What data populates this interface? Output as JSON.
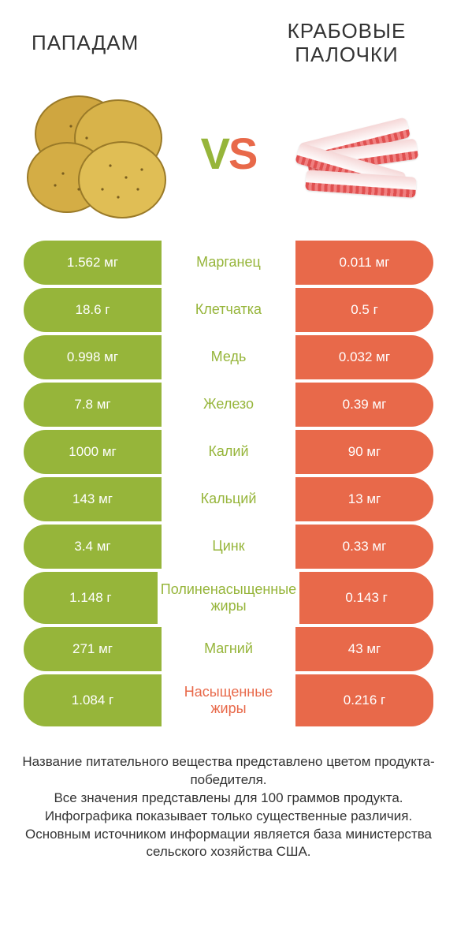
{
  "colors": {
    "left": "#96b53a",
    "right": "#e8694a",
    "background": "#ffffff",
    "text": "#333333",
    "cell_text": "#ffffff"
  },
  "fonts": {
    "title_size": 26,
    "vs_size": 56,
    "cell_size": 17,
    "mid_size": 18,
    "foot_size": 17
  },
  "header": {
    "left_title": "ПАПАДАМ",
    "right_title": "КРАБОВЫЕ ПАЛОЧКИ"
  },
  "vs": {
    "v": "V",
    "s": "S"
  },
  "rows": [
    {
      "left": "1.562 мг",
      "mid": "Марганец",
      "right": "0.011 мг",
      "winner": "left"
    },
    {
      "left": "18.6 г",
      "mid": "Клетчатка",
      "right": "0.5 г",
      "winner": "left"
    },
    {
      "left": "0.998 мг",
      "mid": "Медь",
      "right": "0.032 мг",
      "winner": "left"
    },
    {
      "left": "7.8 мг",
      "mid": "Железо",
      "right": "0.39 мг",
      "winner": "left"
    },
    {
      "left": "1000 мг",
      "mid": "Калий",
      "right": "90 мг",
      "winner": "left"
    },
    {
      "left": "143 мг",
      "mid": "Кальций",
      "right": "13 мг",
      "winner": "left"
    },
    {
      "left": "3.4 мг",
      "mid": "Цинк",
      "right": "0.33 мг",
      "winner": "left"
    },
    {
      "left": "1.148 г",
      "mid": "Полиненасыщенные жиры",
      "right": "0.143 г",
      "winner": "left",
      "tall": true
    },
    {
      "left": "271 мг",
      "mid": "Магний",
      "right": "43 мг",
      "winner": "left"
    },
    {
      "left": "1.084 г",
      "mid": "Насыщенные жиры",
      "right": "0.216 г",
      "winner": "right",
      "tall": true
    }
  ],
  "footnote": {
    "l1": "Название питательного вещества представлено цветом продукта-победителя.",
    "l2": "Все значения представлены для 100 граммов продукта.",
    "l3": "Инфографика показывает только существенные различия.",
    "l4": "Основным источником информации является база министерства сельского хозяйства США."
  }
}
